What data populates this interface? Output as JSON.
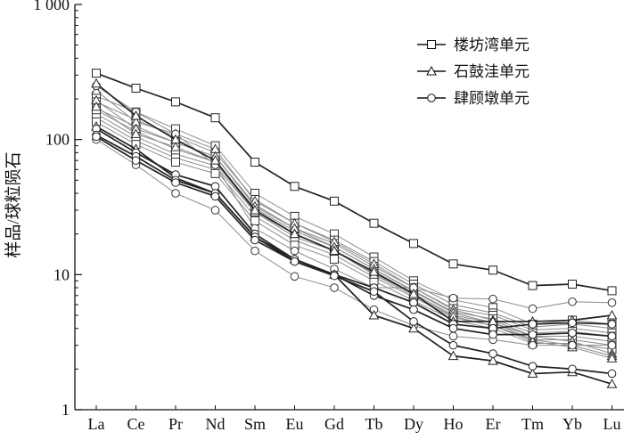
{
  "chart_data": {
    "type": "line",
    "title": "",
    "xlabel": "",
    "ylabel": "样品/球粒陨石",
    "y_scale": "log",
    "ylim": [
      1,
      1000
    ],
    "y_ticks": [
      {
        "value": 1,
        "label": "1"
      },
      {
        "value": 10,
        "label": "10"
      },
      {
        "value": 100,
        "label": "100"
      },
      {
        "value": 1000,
        "label": "1 000"
      }
    ],
    "categories": [
      "La",
      "Ce",
      "Pr",
      "Nd",
      "Sm",
      "Eu",
      "Gd",
      "Tb",
      "Dy",
      "Ho",
      "Er",
      "Tm",
      "Yb",
      "Lu"
    ],
    "legend": {
      "position": "top-right",
      "entries": [
        {
          "label": "楼坊湾单元",
          "marker": "square"
        },
        {
          "label": "石鼓洼单元",
          "marker": "triangle"
        },
        {
          "label": "肆顾墩单元",
          "marker": "circle"
        }
      ]
    },
    "colors": {
      "dark_line": "#222222",
      "light_line": "#8c8c8c",
      "marker_stroke": "#333333"
    },
    "series": [
      {
        "group": "楼坊湾单元",
        "marker": "square",
        "style": "dark",
        "values": [
          310,
          240,
          190,
          145,
          68,
          45,
          35,
          24,
          17,
          12,
          10.8,
          8.3,
          8.5,
          7.6
        ]
      },
      {
        "group": "楼坊湾单元",
        "marker": "square",
        "style": "light",
        "values": [
          210,
          160,
          120,
          90,
          40,
          27,
          20,
          13.5,
          9,
          6.5,
          5.7,
          4.3,
          4.6,
          4.3
        ]
      },
      {
        "group": "楼坊湾单元",
        "marker": "square",
        "style": "light",
        "values": [
          190,
          140,
          105,
          80,
          36,
          24,
          18,
          12.5,
          8.5,
          6,
          5.2,
          4.1,
          4.3,
          4.0
        ]
      },
      {
        "group": "楼坊湾单元",
        "marker": "square",
        "style": "light",
        "values": [
          170,
          125,
          95,
          75,
          33,
          22,
          17,
          11.5,
          8,
          5.6,
          5.0,
          3.9,
          4.0,
          3.7
        ]
      },
      {
        "group": "楼坊湾单元",
        "marker": "square",
        "style": "light",
        "values": [
          165,
          115,
          85,
          68,
          31,
          21,
          16,
          11,
          7.6,
          5.3,
          4.7,
          3.7,
          3.8,
          3.5
        ]
      },
      {
        "group": "楼坊湾单元",
        "marker": "square",
        "style": "light",
        "values": [
          155,
          105,
          78,
          64,
          29,
          19,
          15,
          10.2,
          7.2,
          5.0,
          4.4,
          3.5,
          3.5,
          3.2
        ]
      },
      {
        "group": "楼坊湾单元",
        "marker": "square",
        "style": "light",
        "values": [
          145,
          98,
          73,
          60,
          27,
          18,
          14,
          9.6,
          6.8,
          4.8,
          4.2,
          3.3,
          3.3,
          3.0
        ]
      },
      {
        "group": "楼坊湾单元",
        "marker": "square",
        "style": "light",
        "values": [
          135,
          92,
          68,
          56,
          25,
          16.5,
          13,
          9.0,
          6.4,
          4.6,
          4.0,
          3.1,
          3.1,
          2.8
        ]
      },
      {
        "group": "石鼓洼单元",
        "marker": "triangle",
        "style": "dark",
        "values": [
          260,
          150,
          100,
          70,
          30,
          20,
          15,
          10.5,
          7.2,
          4.5,
          4.5,
          4.5,
          4.6,
          5.0
        ]
      },
      {
        "group": "石鼓洼单元",
        "marker": "triangle",
        "style": "dark",
        "values": [
          125,
          85,
          52,
          40,
          19,
          13,
          10,
          5.0,
          4.0,
          2.5,
          2.3,
          1.85,
          1.9,
          1.55
        ]
      },
      {
        "group": "石鼓洼单元",
        "marker": "triangle",
        "style": "light",
        "values": [
          230,
          135,
          110,
          85,
          35,
          24,
          17.5,
          12,
          8,
          5.5,
          4.6,
          3.5,
          3.2,
          2.6
        ]
      },
      {
        "group": "石鼓洼单元",
        "marker": "triangle",
        "style": "light",
        "values": [
          195,
          120,
          95,
          75,
          32,
          22,
          16,
          11,
          7.5,
          5.2,
          4.4,
          3.3,
          3.0,
          2.5
        ]
      },
      {
        "group": "石鼓洼单元",
        "marker": "triangle",
        "style": "light",
        "values": [
          175,
          110,
          88,
          68,
          29,
          20,
          15,
          10,
          7.0,
          4.9,
          4.2,
          3.2,
          2.9,
          2.4
        ]
      },
      {
        "group": "肆顾墩单元",
        "marker": "circle",
        "style": "dark",
        "values": [
          120,
          80,
          55,
          45,
          20,
          13,
          10,
          8.0,
          6.2,
          4.3,
          4.0,
          4.3,
          4.4,
          4.3
        ]
      },
      {
        "group": "肆顾墩单元",
        "marker": "circle",
        "style": "dark",
        "values": [
          108,
          75,
          50,
          40,
          19,
          12.5,
          10,
          7.0,
          5.5,
          4.0,
          3.6,
          3.6,
          3.7,
          3.5
        ]
      },
      {
        "group": "肆顾墩单元",
        "marker": "circle",
        "style": "dark",
        "values": [
          105,
          70,
          48,
          38,
          18,
          12.5,
          9.8,
          7.5,
          4.5,
          3.0,
          2.6,
          2.1,
          2.0,
          1.85
        ]
      },
      {
        "group": "肆顾墩单元",
        "marker": "circle",
        "style": "light",
        "values": [
          250,
          160,
          110,
          65,
          22,
          15,
          11,
          8.0,
          8.0,
          6.7,
          6.6,
          5.6,
          6.3,
          6.2
        ]
      },
      {
        "group": "肆顾墩单元",
        "marker": "circle",
        "style": "light",
        "values": [
          100,
          65,
          40,
          30,
          15,
          9.7,
          8.0,
          5.5,
          4.2,
          3.5,
          3.3,
          3.0,
          3.0,
          3.0
        ]
      }
    ]
  }
}
